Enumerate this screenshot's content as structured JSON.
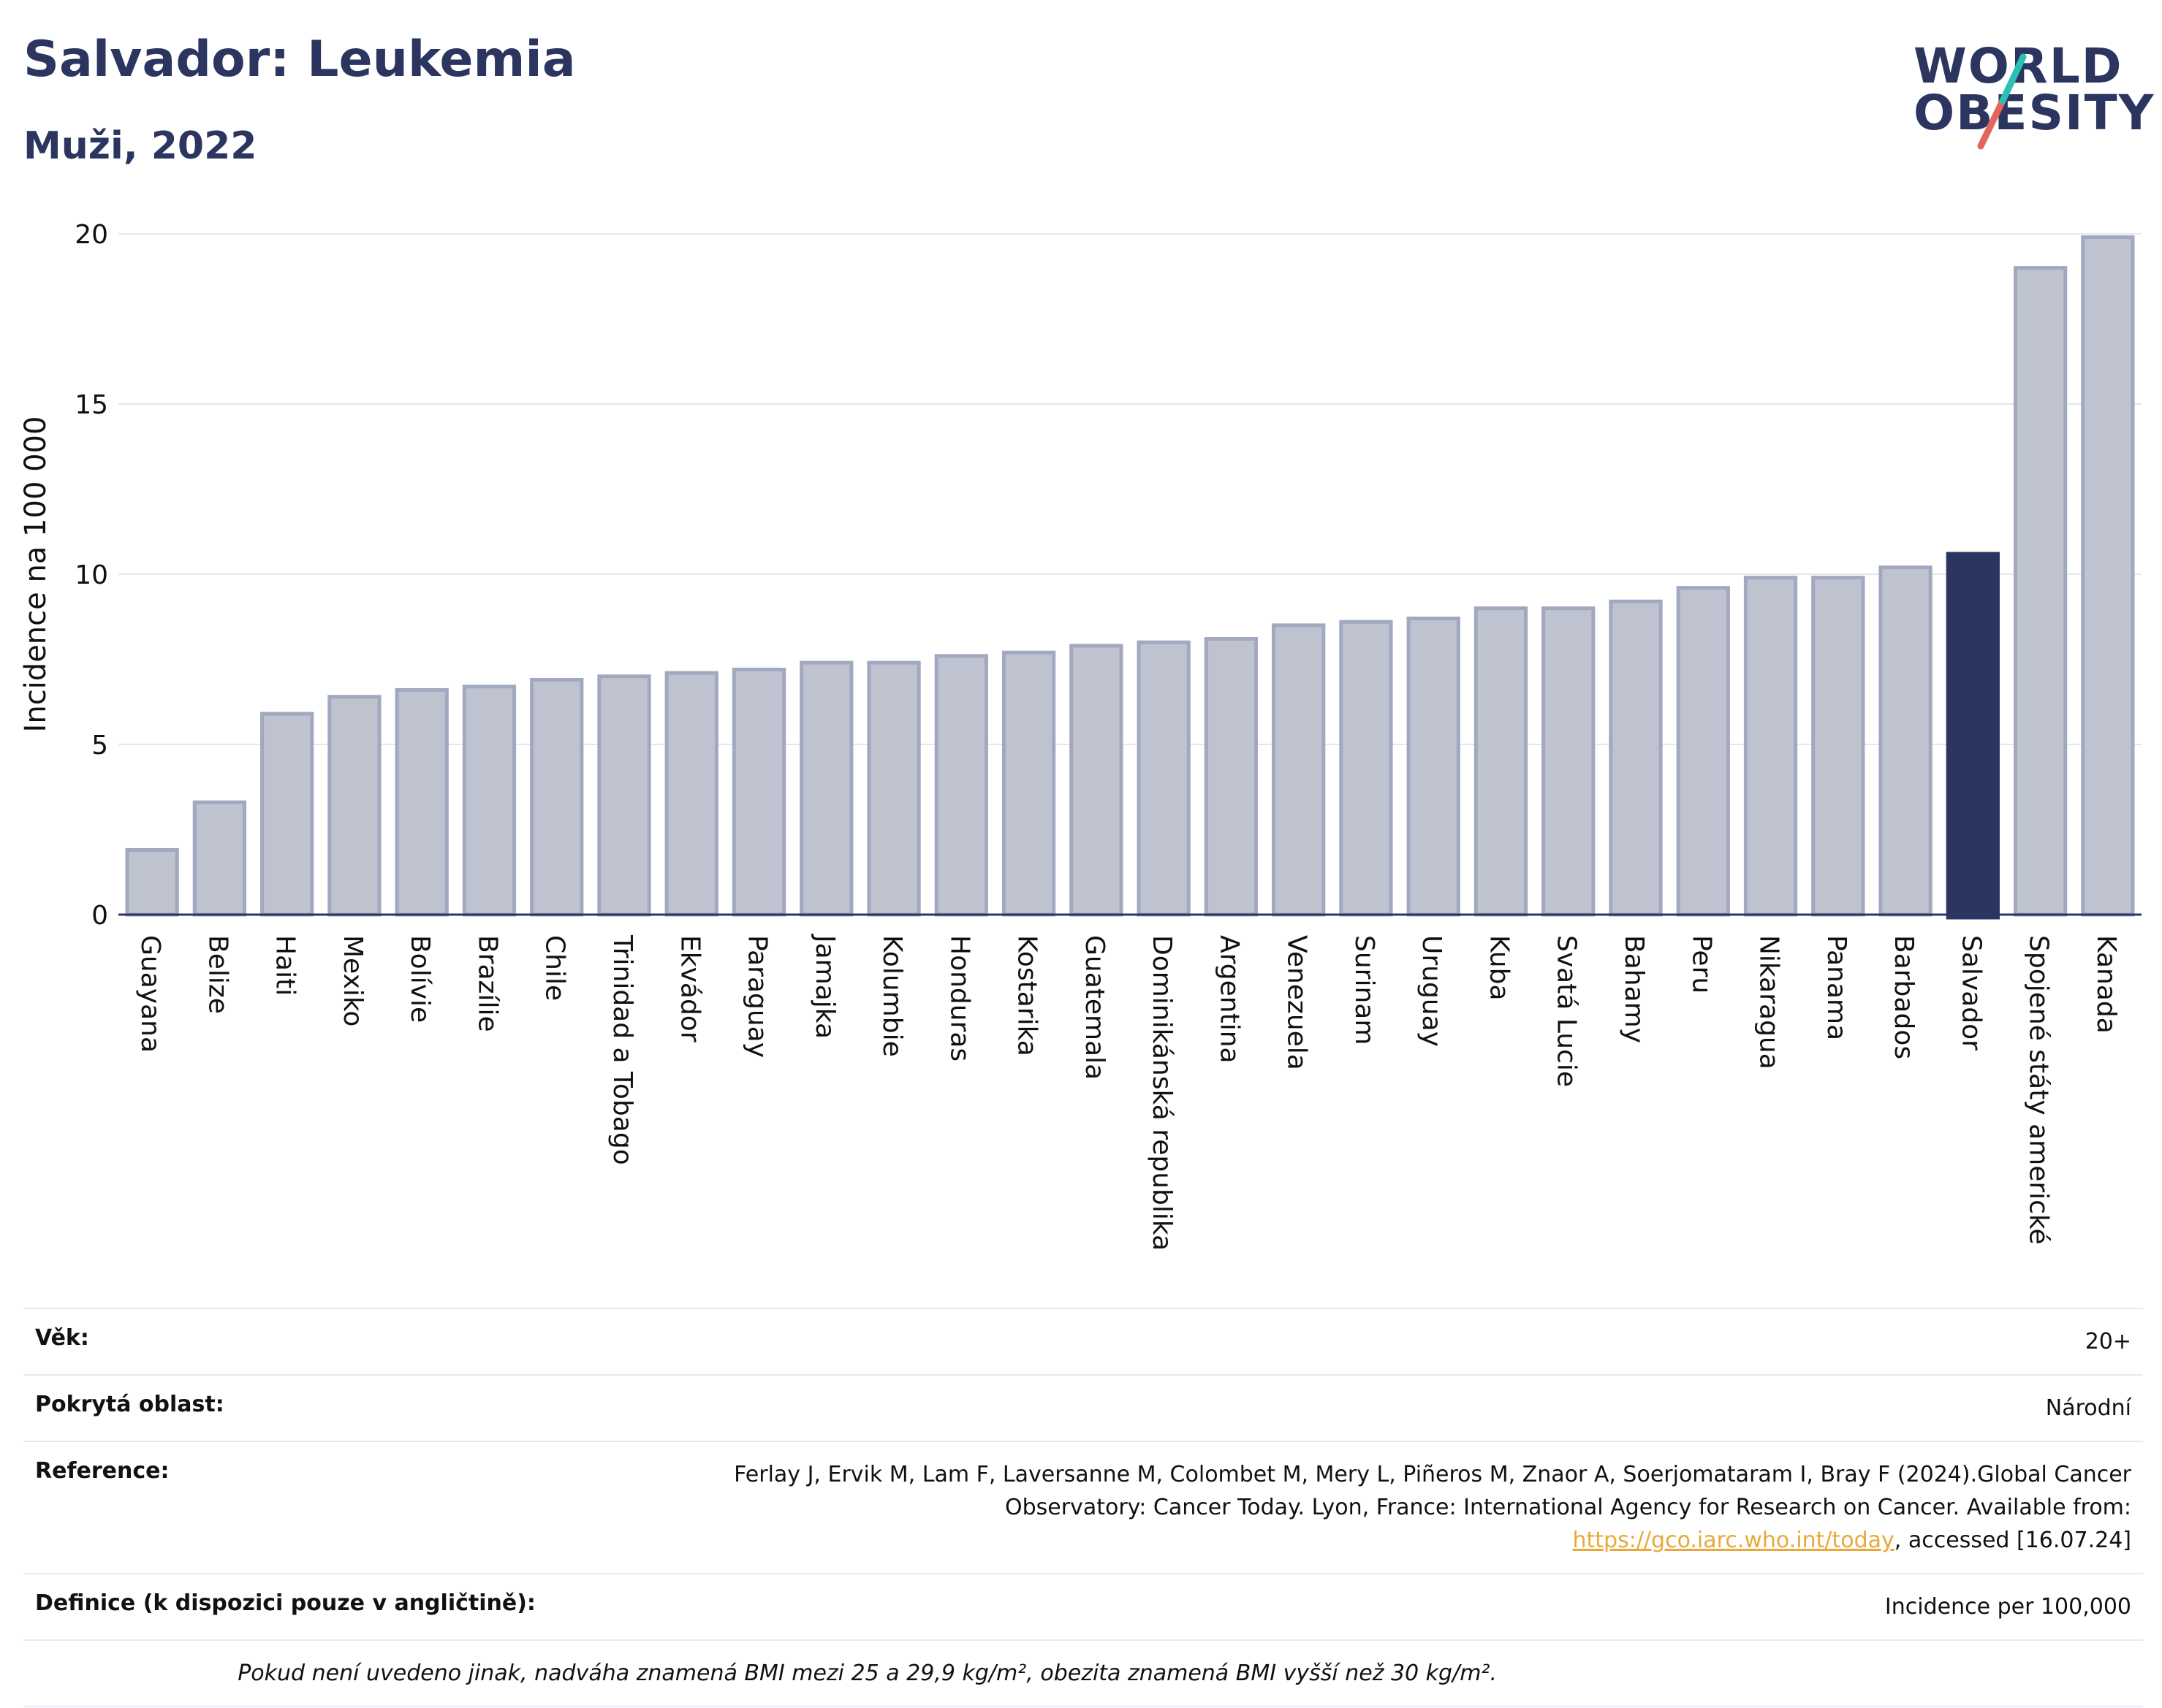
{
  "header": {
    "title": "Salvador: Leukemia",
    "subtitle": "Muži, 2022"
  },
  "logo": {
    "line1": "WORLD",
    "line2": "OBESITY",
    "accent_colors": [
      "#2bbfb6",
      "#e2665a"
    ]
  },
  "chart_data": {
    "type": "bar",
    "ylabel": "Incidence na 100 000",
    "xlabel": "",
    "ylim": [
      0,
      20
    ],
    "yticks": [
      0,
      5,
      10,
      15,
      20
    ],
    "grid": true,
    "highlight": "Salvador",
    "colors": {
      "bar": "#bfc3d0",
      "bar_edge": "#a2a8bf",
      "highlight": "#2c3560"
    },
    "categories": [
      "Guayana",
      "Belize",
      "Haiti",
      "Mexiko",
      "Bolívie",
      "Brazílie",
      "Chile",
      "Trinidad a Tobago",
      "Ekvádor",
      "Paraguay",
      "Jamajka",
      "Kolumbie",
      "Honduras",
      "Kostarika",
      "Guatemala",
      "Dominikánská republika",
      "Argentina",
      "Venezuela",
      "Surinam",
      "Uruguay",
      "Kuba",
      "Svatá Lucie",
      "Bahamy",
      "Peru",
      "Nikaragua",
      "Panama",
      "Barbados",
      "Salvador",
      "Spojené státy americké",
      "Kanada"
    ],
    "values": [
      1.9,
      3.3,
      5.9,
      6.4,
      6.6,
      6.7,
      6.9,
      7.0,
      7.1,
      7.2,
      7.4,
      7.4,
      7.6,
      7.7,
      7.9,
      8.0,
      8.1,
      8.5,
      8.6,
      8.7,
      9.0,
      9.0,
      9.2,
      9.6,
      9.9,
      9.9,
      10.2,
      10.6,
      19.0,
      19.9
    ]
  },
  "meta": {
    "rows": [
      {
        "label": "Věk:",
        "value": "20+"
      },
      {
        "label": "Pokrytá oblast:",
        "value": "Národní"
      },
      {
        "label": "Reference:",
        "value_pre": "Ferlay J, Ervik M, Lam F, Laversanne M, Colombet M, Mery L, Piñeros M, Znaor A, Soerjomataram I, Bray F (2024).Global Cancer Observatory: Cancer Today. Lyon, France: International Agency for Research on Cancer. Available from: ",
        "link": "https://gco.iarc.who.int/today",
        "value_post": ", accessed [16.07.24]"
      },
      {
        "label": "Definice (k dispozici pouze v angličtině):",
        "value": "Incidence per 100,000"
      }
    ],
    "note": "Pokud není uvedeno jinak, nadváha znamená BMI mezi 25 a 29,9 kg/m², obezita znamená BMI vyšší než 30 kg/m²."
  }
}
